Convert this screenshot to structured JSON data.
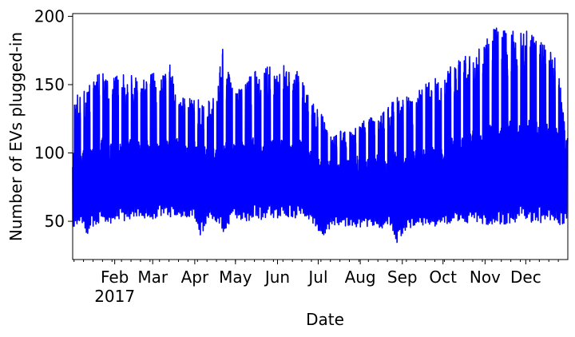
{
  "chart_data": {
    "type": "line",
    "title": "",
    "xlabel": "Date",
    "ylabel": "Number of EVs plugged-in",
    "x_range": [
      "2017-01-01",
      "2017-12-31"
    ],
    "ylim": [
      22,
      202
    ],
    "yticks": [
      50,
      100,
      150,
      200
    ],
    "xticks": [
      {
        "date": "2017-02-01",
        "label": "Feb",
        "sublabel": "2017"
      },
      {
        "date": "2017-03-01",
        "label": "Mar",
        "sublabel": ""
      },
      {
        "date": "2017-04-01",
        "label": "Apr",
        "sublabel": ""
      },
      {
        "date": "2017-05-01",
        "label": "May",
        "sublabel": ""
      },
      {
        "date": "2017-06-01",
        "label": "Jun",
        "sublabel": ""
      },
      {
        "date": "2017-07-01",
        "label": "Jul",
        "sublabel": ""
      },
      {
        "date": "2017-08-01",
        "label": "Aug",
        "sublabel": ""
      },
      {
        "date": "2017-09-01",
        "label": "Sep",
        "sublabel": ""
      },
      {
        "date": "2017-10-01",
        "label": "Oct",
        "sublabel": ""
      },
      {
        "date": "2017-11-01",
        "label": "Nov",
        "sublabel": ""
      },
      {
        "date": "2017-12-01",
        "label": "Dec",
        "sublabel": ""
      }
    ],
    "grid": false,
    "legend": "none",
    "line_color": "#0000ff",
    "series": [
      {
        "x": [
          "2017-01-01",
          "2017-01-06",
          "2017-01-12",
          "2017-01-17",
          "2017-01-23",
          "2017-01-28",
          "2017-02-03",
          "2017-02-09",
          "2017-02-14",
          "2017-02-20",
          "2017-02-25",
          "2017-03-03",
          "2017-03-08",
          "2017-03-14",
          "2017-03-19",
          "2017-03-25",
          "2017-03-31",
          "2017-04-05",
          "2017-04-11",
          "2017-04-16",
          "2017-04-22",
          "2017-04-28",
          "2017-05-03",
          "2017-05-09",
          "2017-05-14",
          "2017-05-20",
          "2017-05-26",
          "2017-05-31",
          "2017-06-06",
          "2017-06-11",
          "2017-06-17",
          "2017-06-22",
          "2017-06-28",
          "2017-07-04",
          "2017-07-09",
          "2017-07-15",
          "2017-07-20",
          "2017-07-26",
          "2017-08-01",
          "2017-08-06",
          "2017-08-12",
          "2017-08-17",
          "2017-08-23",
          "2017-08-29",
          "2017-09-03",
          "2017-09-09",
          "2017-09-14",
          "2017-09-20",
          "2017-09-26",
          "2017-10-01",
          "2017-10-07",
          "2017-10-12",
          "2017-10-18",
          "2017-10-24",
          "2017-10-29",
          "2017-11-04",
          "2017-11-09",
          "2017-11-15",
          "2017-11-20",
          "2017-11-26",
          "2017-12-02",
          "2017-12-07",
          "2017-12-13",
          "2017-12-18",
          "2017-12-24",
          "2017-12-30"
        ],
        "values": [
          88,
          80,
          92,
          85,
          96,
          90,
          93,
          88,
          97,
          91,
          94,
          89,
          96,
          92,
          95,
          90,
          94,
          88,
          92,
          86,
          91,
          93,
          95,
          89,
          97,
          93,
          96,
          92,
          95,
          90,
          94,
          88,
          84,
          78,
          82,
          79,
          83,
          80,
          84,
          81,
          85,
          79,
          82,
          86,
          83,
          85,
          88,
          86,
          90,
          89,
          96,
          92,
          98,
          101,
          99,
          104,
          106,
          103,
          108,
          105,
          107,
          110,
          104,
          108,
          102,
          98
        ],
        "min_values": [
          45,
          48,
          40,
          47,
          50,
          48,
          52,
          50,
          53,
          51,
          52,
          50,
          54,
          53,
          55,
          52,
          53,
          38,
          52,
          50,
          42,
          50,
          52,
          48,
          53,
          51,
          54,
          52,
          55,
          52,
          53,
          51,
          48,
          37,
          44,
          47,
          46,
          43,
          45,
          44,
          46,
          45,
          47,
          32,
          43,
          45,
          46,
          48,
          44,
          47,
          49,
          48,
          46,
          47,
          45,
          48,
          47,
          46,
          49,
          48,
          50,
          49,
          48,
          50,
          47,
          47
        ],
        "max_values": [
          143,
          145,
          150,
          160,
          161,
          150,
          161,
          158,
          162,
          151,
          159,
          160,
          158,
          165,
          140,
          141,
          140,
          139,
          138,
          141,
          179,
          150,
          148,
          152,
          160,
          163,
          165,
          158,
          166,
          161,
          163,
          145,
          136,
          128,
          113,
          113,
          120,
          116,
          122,
          126,
          126,
          130,
          136,
          142,
          143,
          141,
          149,
          151,
          156,
          154,
          164,
          168,
          171,
          172,
          179,
          187,
          195,
          192,
          190,
          187,
          193,
          188,
          183,
          176,
          170,
          120
        ]
      }
    ]
  }
}
